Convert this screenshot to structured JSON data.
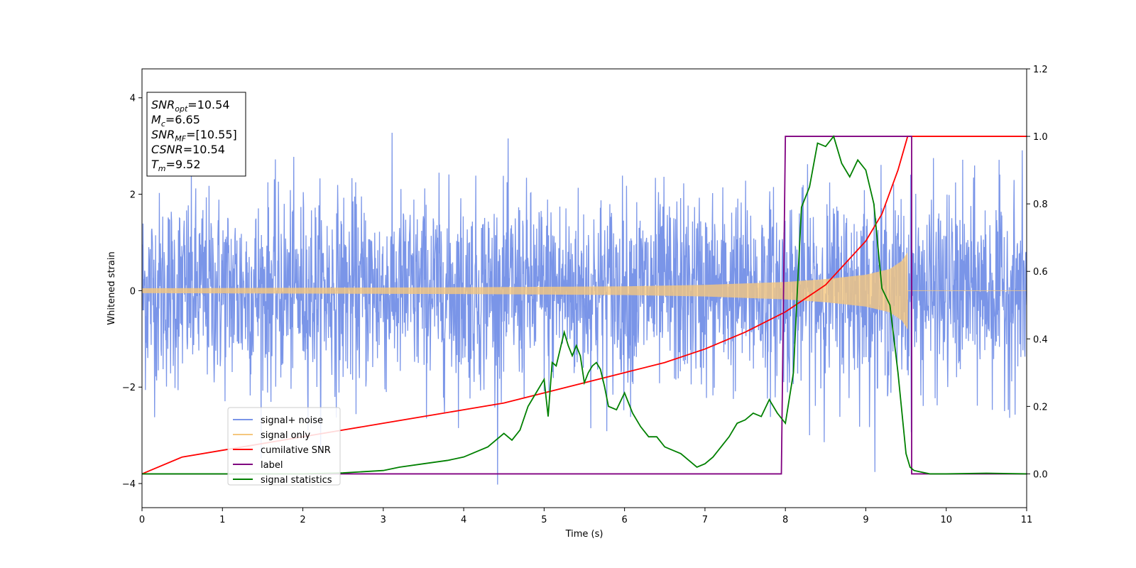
{
  "chart_data": {
    "type": "line",
    "xlabel": "Time (s)",
    "ylabel": "Whitened strain",
    "xlim": [
      0,
      11
    ],
    "ylim": [
      -4.5,
      4.6
    ],
    "y2lim": [
      -0.1,
      1.2
    ],
    "x_ticks": [
      "0",
      "1",
      "2",
      "3",
      "4",
      "5",
      "6",
      "7",
      "8",
      "9",
      "10",
      "11"
    ],
    "y_ticks": [
      "−4",
      "−2",
      "0",
      "2",
      "4"
    ],
    "y2_ticks": [
      "0.0",
      "0.2",
      "0.4",
      "0.6",
      "0.8",
      "1.0",
      "1.2"
    ],
    "legend_position": "lower-left",
    "annotation_box": {
      "position": "top-left",
      "lines": [
        {
          "label": "SNR",
          "subscript": "opt",
          "value": "=10.54"
        },
        {
          "label": "M",
          "subscript": "c",
          "value": "=6.65"
        },
        {
          "label": "SNR",
          "subscript": "MF",
          "value": "=[10.55]"
        },
        {
          "label": "CSNR",
          "subscript": "",
          "value": "=10.54"
        },
        {
          "label": "T",
          "subscript": "m",
          "value": "=9.52"
        }
      ]
    },
    "series": [
      {
        "name": "signal+ noise",
        "axis": "left",
        "color": "#7a95e8",
        "kind": "noise",
        "sigma": 1.0,
        "x_range": [
          0,
          11
        ]
      },
      {
        "name": "signal only",
        "axis": "left",
        "color": "#f5c77e",
        "kind": "chirp",
        "envelope": {
          "x": [
            0,
            2,
            4,
            6,
            7,
            8,
            8.5,
            9,
            9.3,
            9.45,
            9.52
          ],
          "amp": [
            0.05,
            0.06,
            0.07,
            0.09,
            0.12,
            0.18,
            0.24,
            0.33,
            0.45,
            0.62,
            0.8
          ]
        },
        "x_range": [
          0,
          11
        ]
      },
      {
        "name": "cumilative SNR",
        "axis": "right",
        "color": "#ff0000",
        "x": [
          0,
          0.5,
          1,
          1.5,
          2,
          2.5,
          3,
          3.5,
          4,
          4.5,
          5,
          5.5,
          6,
          6.5,
          7,
          7.5,
          8,
          8.5,
          9,
          9.2,
          9.4,
          9.52,
          11
        ],
        "y": [
          0.0,
          0.05,
          0.07,
          0.09,
          0.11,
          0.13,
          0.15,
          0.17,
          0.19,
          0.21,
          0.24,
          0.27,
          0.3,
          0.33,
          0.37,
          0.42,
          0.48,
          0.56,
          0.69,
          0.77,
          0.9,
          1.0,
          1.0
        ]
      },
      {
        "name": "label",
        "axis": "right",
        "color": "#800080",
        "x": [
          0,
          7.95,
          8.0,
          9.57,
          9.57,
          11
        ],
        "y": [
          0,
          0,
          1,
          1,
          0,
          0
        ]
      },
      {
        "name": "signal statistics",
        "axis": "right",
        "color": "#008000",
        "x": [
          0,
          0.5,
          1,
          1.5,
          2,
          2.5,
          3,
          3.2,
          3.5,
          3.8,
          4.0,
          4.1,
          4.2,
          4.3,
          4.4,
          4.5,
          4.6,
          4.7,
          4.8,
          4.9,
          5.0,
          5.05,
          5.1,
          5.15,
          5.2,
          5.25,
          5.3,
          5.35,
          5.4,
          5.45,
          5.5,
          5.55,
          5.6,
          5.65,
          5.7,
          5.75,
          5.8,
          5.9,
          6.0,
          6.1,
          6.2,
          6.3,
          6.4,
          6.5,
          6.6,
          6.7,
          6.8,
          6.9,
          7.0,
          7.1,
          7.2,
          7.3,
          7.4,
          7.5,
          7.6,
          7.7,
          7.8,
          7.9,
          8.0,
          8.1,
          8.15,
          8.2,
          8.3,
          8.4,
          8.5,
          8.6,
          8.7,
          8.8,
          8.9,
          9.0,
          9.1,
          9.2,
          9.3,
          9.4,
          9.5,
          9.55,
          9.6,
          9.7,
          9.8,
          9.9,
          10.0,
          10.5,
          11.0
        ],
        "y": [
          0.0,
          0.0,
          0.0,
          0.0,
          0.0,
          0.003,
          0.01,
          0.02,
          0.03,
          0.04,
          0.05,
          0.06,
          0.07,
          0.08,
          0.1,
          0.12,
          0.1,
          0.13,
          0.2,
          0.24,
          0.28,
          0.17,
          0.33,
          0.32,
          0.37,
          0.42,
          0.38,
          0.35,
          0.38,
          0.35,
          0.27,
          0.3,
          0.32,
          0.33,
          0.31,
          0.26,
          0.2,
          0.19,
          0.24,
          0.18,
          0.14,
          0.11,
          0.11,
          0.08,
          0.07,
          0.06,
          0.04,
          0.02,
          0.03,
          0.05,
          0.08,
          0.11,
          0.15,
          0.16,
          0.18,
          0.17,
          0.22,
          0.18,
          0.15,
          0.3,
          0.55,
          0.79,
          0.85,
          0.98,
          0.97,
          1.0,
          0.92,
          0.88,
          0.93,
          0.9,
          0.8,
          0.55,
          0.5,
          0.3,
          0.06,
          0.02,
          0.01,
          0.005,
          0.0,
          0.0,
          0.0,
          0.002,
          0.0
        ]
      }
    ]
  }
}
